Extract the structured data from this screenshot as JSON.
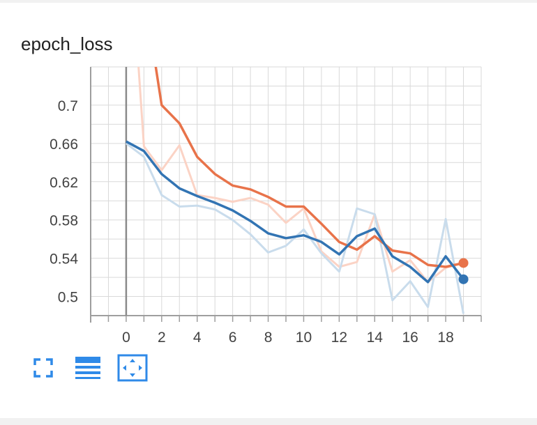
{
  "card": {
    "title": "epoch_loss"
  },
  "toolbar": [
    {
      "name": "fullscreen-icon"
    },
    {
      "name": "toggle-y-log-icon"
    },
    {
      "name": "fit-domain-icon"
    }
  ],
  "colors": {
    "orange": "#e8734a",
    "orange_raw": "#fbd3c5",
    "blue": "#3274b3",
    "blue_raw": "#c9dcec",
    "grid": "#d9d9d9",
    "axis": "#9e9e9e",
    "toolbar": "#2f8ae8"
  },
  "chart_data": {
    "type": "line",
    "title": "epoch_loss",
    "xlim": [
      -2,
      20
    ],
    "ylim": [
      0.48,
      0.74
    ],
    "xticks": [
      "0",
      "2",
      "4",
      "6",
      "8",
      "10",
      "12",
      "14",
      "16",
      "18"
    ],
    "xtick_values": [
      0,
      2,
      4,
      6,
      8,
      10,
      12,
      14,
      16,
      18
    ],
    "yticks": [
      "0.7",
      "0.66",
      "0.62",
      "0.58",
      "0.54",
      "0.5"
    ],
    "ytick_values": [
      0.7,
      0.66,
      0.62,
      0.58,
      0.54,
      0.5
    ],
    "grid": true,
    "series": [
      {
        "color": "orange",
        "raw": [
          0.93,
          0.657,
          0.632,
          0.658,
          0.606,
          0.603,
          0.599,
          0.603,
          0.596,
          0.577,
          0.592,
          0.547,
          0.531,
          0.536,
          0.586,
          0.526,
          0.538,
          0.515,
          0.53,
          0.535
        ],
        "smoothed": [
          0.93,
          0.82,
          0.7,
          0.681,
          0.646,
          0.628,
          0.616,
          0.612,
          0.604,
          0.594,
          0.594,
          0.576,
          0.557,
          0.549,
          0.563,
          0.548,
          0.545,
          0.533,
          0.531,
          0.535
        ]
      },
      {
        "color": "blue",
        "raw": [
          0.66,
          0.646,
          0.606,
          0.594,
          0.595,
          0.591,
          0.58,
          0.565,
          0.546,
          0.553,
          0.57,
          0.545,
          0.526,
          0.592,
          0.586,
          0.496,
          0.516,
          0.489,
          0.581,
          0.482
        ],
        "smoothed": [
          0.662,
          0.652,
          0.628,
          0.613,
          0.605,
          0.598,
          0.59,
          0.579,
          0.566,
          0.561,
          0.564,
          0.557,
          0.544,
          0.563,
          0.571,
          0.542,
          0.531,
          0.515,
          0.542,
          0.518
        ]
      }
    ]
  }
}
